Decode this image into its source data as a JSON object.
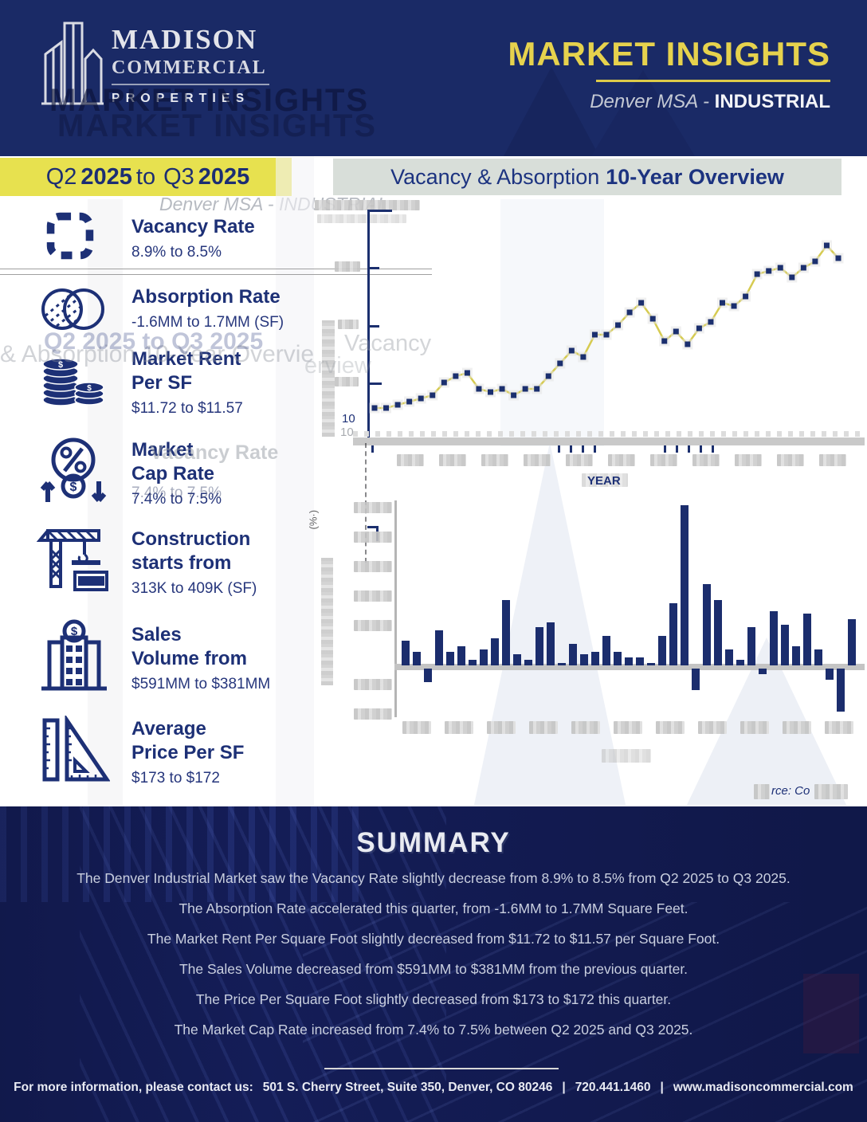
{
  "header": {
    "logo": {
      "line1": "MADISON",
      "line2": "COMMERCIAL",
      "line3": "PROPERTIES"
    },
    "title": "MARKET INSIGHTS",
    "subtitle_region": "Denver MSA",
    "subtitle_sep": " - ",
    "subtitle_sector": "INDUSTRIAL"
  },
  "banner": {
    "p1": "Q2",
    "p2": "2025",
    "p3": "to",
    "p4": "Q3",
    "p5": "2025"
  },
  "chart_titlebar": {
    "regular": "Vacancy & Absorption",
    "bold": "10-Year Overview"
  },
  "metrics": [
    {
      "label": "Vacancy Rate",
      "value": "8.9% to 8.5%",
      "icon": "dashed-square-icon"
    },
    {
      "label": "Absorption Rate",
      "value": "-1.6MM to 1.7MM (SF)",
      "icon": "venn-circles-icon"
    },
    {
      "label": "Market Rent",
      "label2": "Per SF",
      "value": "$11.72 to $11.57",
      "icon": "coin-stacks-icon"
    },
    {
      "label": "Market",
      "label2": "Cap Rate",
      "value": "7.4% to 7.5%",
      "icon": "percent-arrows-icon"
    },
    {
      "label": "Construction",
      "label2": "starts from",
      "value": "313K to 409K (SF)",
      "icon": "crane-icon"
    },
    {
      "label": "Sales",
      "label2": "Volume from",
      "value": "$591MM to $381MM",
      "icon": "building-dollar-icon"
    },
    {
      "label": "Average",
      "label2": "Price Per SF",
      "value": "$173 to $172",
      "icon": "ruler-triangle-icon"
    }
  ],
  "charts": {
    "visible_y_tick": "10",
    "x_axis_label": "YEAR",
    "rotated_label_fragment": "(%·)",
    "source_partial": "rce: Co"
  },
  "chart_data": [
    {
      "type": "line",
      "series_name": "Vacancy Rate (%)",
      "xlabel": "YEAR",
      "x_note": "quarterly points, 10 years ending Q3 2025 (year tick labels blurred in source)",
      "ylim": [
        2,
        10
      ],
      "visible_y_tick_label": "10",
      "line_color": "#d6cb51",
      "marker_color": "#1b2f6e",
      "values": [
        3.8,
        3.8,
        3.9,
        4.0,
        4.1,
        4.2,
        4.6,
        4.8,
        4.9,
        4.4,
        4.3,
        4.4,
        4.2,
        4.4,
        4.4,
        4.8,
        5.2,
        5.6,
        5.4,
        6.1,
        6.1,
        6.4,
        6.8,
        7.1,
        6.6,
        5.9,
        6.2,
        5.8,
        6.3,
        6.5,
        7.1,
        7.0,
        7.3,
        8.0,
        8.1,
        8.2,
        7.9,
        8.2,
        8.4,
        8.9,
        8.5
      ]
    },
    {
      "type": "bar",
      "series_name": "Net Absorption (MM SF)",
      "x_note": "quarterly bars, 10 years ending Q3 2025 (year tick labels blurred in source)",
      "ylim": [
        -2,
        6
      ],
      "bar_color": "#1b2d6d",
      "values": [
        0.9,
        0.5,
        -0.5,
        1.3,
        0.5,
        0.7,
        0.2,
        0.6,
        1.0,
        2.4,
        0.4,
        0.2,
        1.4,
        1.6,
        0.1,
        0.8,
        0.4,
        0.5,
        1.1,
        0.5,
        0.3,
        0.3,
        0.1,
        1.1,
        2.3,
        5.9,
        -0.8,
        3.0,
        2.4,
        0.6,
        0.2,
        1.4,
        -0.2,
        2.0,
        1.5,
        0.7,
        1.9,
        0.6,
        -0.4,
        -1.6,
        1.7
      ]
    }
  ],
  "summary": {
    "title": "SUMMARY",
    "lines": [
      "The Denver Industrial Market saw the Vacancy Rate slightly decrease from 8.9% to 8.5% from Q2 2025 to Q3 2025.",
      "The Absorption Rate accelerated this quarter, from -1.6MM to 1.7MM Square Feet.",
      "The Market Rent Per Square Foot slightly decreased from $11.72 to $11.57 per Square Foot.",
      "The Sales Volume decreased from $591MM to $381MM from the previous quarter.",
      "The Price Per Square Foot slightly decreased from $173 to $172 this quarter.",
      "The Market Cap Rate increased from 7.4% to 7.5% between Q2 2025 and Q3 2025."
    ]
  },
  "footer": {
    "intro": "For more information, please contact us:",
    "address": "501 S. Cherry Street, Suite 350, Denver, CO 80246",
    "sep": "|",
    "phone": "720.441.1460",
    "web": "www.madisoncommercial.com"
  },
  "ghosts": {
    "market_insights": "MARKET INSIGHTS",
    "denver_line": "Denver MSA - INDUSTRIAL",
    "overview_line": "& Absorption 10-Year Overvie",
    "period_line": "Q2 2025 to Q3 2025",
    "vacancy_word": "Vacancy",
    "erview_word": "erview",
    "vacancy_rate": "Vacancy Rate",
    "cap_value": "7.4% to 7.5%",
    "ten": "10",
    "year": "YEAR"
  }
}
